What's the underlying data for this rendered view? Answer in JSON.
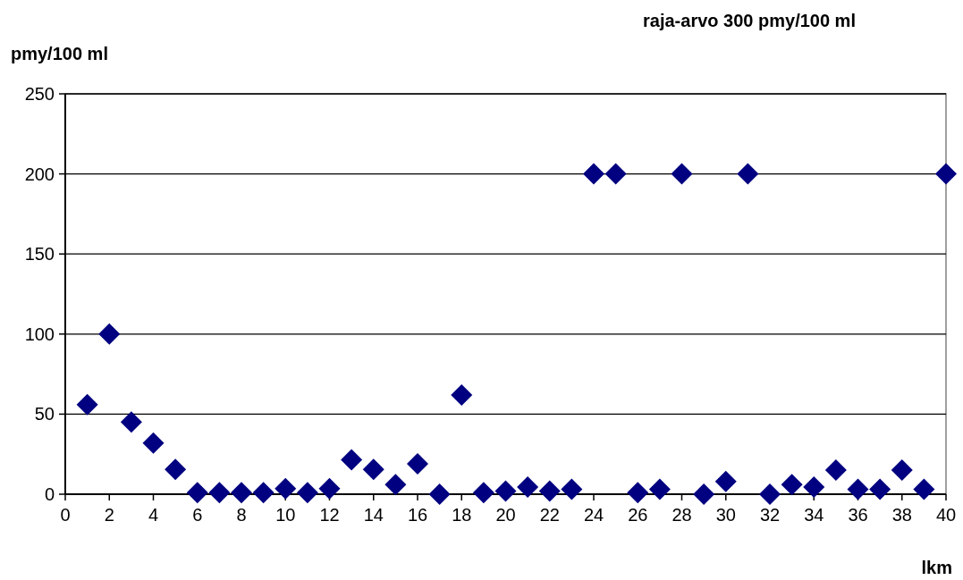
{
  "chart_data": {
    "type": "scatter",
    "title": "raja-arvo 300 pmy/100 ml",
    "ylabel": "pmy/100 ml",
    "xlabel": "lkm",
    "x": [
      1,
      2,
      3,
      4,
      5,
      6,
      7,
      8,
      9,
      10,
      11,
      12,
      13,
      14,
      15,
      16,
      17,
      18,
      19,
      20,
      21,
      22,
      23,
      24,
      25,
      26,
      27,
      28,
      29,
      30,
      31,
      32,
      33,
      34,
      35,
      36,
      37,
      38,
      39,
      40
    ],
    "series": [
      {
        "color": "#000080",
        "values": [
          56,
          100,
          45,
          32,
          15.5,
          1,
          1,
          1,
          1,
          3.5,
          1,
          3.5,
          21.5,
          15.5,
          6,
          19,
          0,
          62,
          1,
          2,
          4.5,
          2,
          3,
          200,
          200,
          1,
          3,
          200,
          0,
          8,
          200,
          0,
          6,
          4.5,
          15,
          3,
          3,
          15,
          3,
          200
        ]
      }
    ],
    "xlim": [
      0,
      40
    ],
    "xticks": [
      0,
      2,
      4,
      6,
      8,
      10,
      12,
      14,
      16,
      18,
      20,
      22,
      24,
      26,
      28,
      30,
      32,
      34,
      36,
      38,
      40
    ],
    "ylim": [
      0,
      250
    ],
    "yticks": [
      0,
      50,
      100,
      150,
      200,
      250
    ],
    "grid": "y",
    "marker": "diamond"
  }
}
